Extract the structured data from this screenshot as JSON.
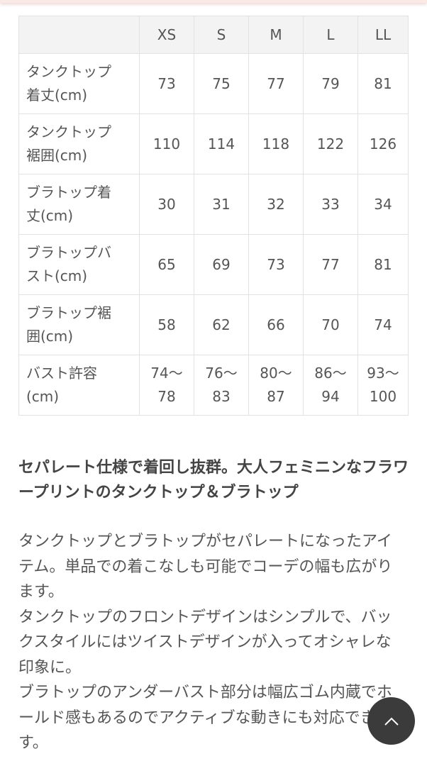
{
  "size_table": {
    "headers": [
      "XS",
      "S",
      "M",
      "L",
      "LL"
    ],
    "rows": [
      {
        "label": "タンクトップ着丈(cm)",
        "values": [
          "73",
          "75",
          "77",
          "79",
          "81"
        ]
      },
      {
        "label": "タンクトップ裾囲(cm)",
        "values": [
          "110",
          "114",
          "118",
          "122",
          "126"
        ]
      },
      {
        "label": "ブラトップ着丈(cm)",
        "values": [
          "30",
          "31",
          "32",
          "33",
          "34"
        ]
      },
      {
        "label": "ブラトップバスト(cm)",
        "values": [
          "65",
          "69",
          "73",
          "77",
          "81"
        ]
      },
      {
        "label": "ブラトップ裾囲(cm)",
        "values": [
          "58",
          "62",
          "66",
          "70",
          "74"
        ]
      },
      {
        "label": "バスト許容(cm)",
        "values": [
          "74〜\n78",
          "76〜\n83",
          "80〜\n87",
          "86〜\n94",
          "93〜\n100"
        ]
      }
    ]
  },
  "description": {
    "heading": "セパレート仕様で着回し抜群。大人フェミニンなフラワープリントのタンクトップ＆ブラトップ",
    "paragraphs": [
      "タンクトップとブラトップがセパレートになったアイテム。単品での着こなしも可能でコーデの幅も広がります。",
      "タンクトップのフロントデザインはシンプルで、バックスタイルにはツイストデザインが入ってオシャレな印象に。",
      "ブラトップのアンダーバスト部分は幅広ゴム内蔵でホールド感もあるのでアクティブな動きにも対応できます。"
    ]
  },
  "back_to_top": {
    "icon": "chevron-up-icon",
    "color": "#3b3b3b"
  }
}
